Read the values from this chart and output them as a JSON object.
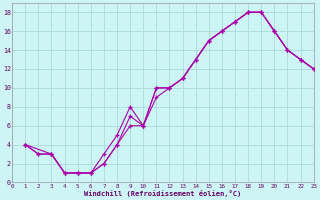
{
  "xlabel": "Windchill (Refroidissement éolien,°C)",
  "bg_color": "#cef5f5",
  "grid_color": "#b0dede",
  "line_color": "#aa00aa",
  "xlim": [
    0,
    23
  ],
  "ylim": [
    0,
    19
  ],
  "xticks": [
    0,
    1,
    2,
    3,
    4,
    5,
    6,
    7,
    8,
    9,
    10,
    11,
    12,
    13,
    14,
    15,
    16,
    17,
    18,
    19,
    20,
    21,
    22,
    23
  ],
  "yticks": [
    0,
    2,
    4,
    6,
    8,
    10,
    12,
    14,
    16,
    18
  ],
  "line1_x": [
    1,
    2,
    3,
    4,
    5,
    6,
    7,
    8,
    9,
    10,
    11,
    12,
    13,
    14,
    15,
    16,
    17,
    18,
    19,
    20,
    21,
    22,
    23
  ],
  "line1_y": [
    4,
    3,
    3,
    1,
    1,
    1,
    2,
    4,
    6,
    6,
    9,
    10,
    11,
    13,
    15,
    16,
    17,
    18,
    18,
    16,
    14,
    13,
    12
  ],
  "line2_x": [
    1,
    2,
    3,
    4,
    5,
    6,
    7,
    8,
    9,
    10,
    11,
    12,
    13,
    14,
    15,
    16,
    17,
    18,
    19,
    20,
    21,
    22,
    23
  ],
  "line2_y": [
    4,
    3,
    3,
    1,
    1,
    1,
    2,
    4,
    7,
    6,
    10,
    10,
    11,
    13,
    15,
    16,
    17,
    18,
    18,
    16,
    14,
    13,
    12
  ],
  "line3_x": [
    1,
    3,
    4,
    5,
    6,
    7,
    8,
    9,
    10,
    11,
    12,
    13,
    14,
    15,
    16,
    17,
    18,
    19,
    20,
    21,
    22,
    23
  ],
  "line3_y": [
    4,
    3,
    1,
    1,
    1,
    3,
    5,
    8,
    6,
    10,
    10,
    11,
    13,
    15,
    16,
    17,
    18,
    18,
    16,
    14,
    13,
    12
  ]
}
